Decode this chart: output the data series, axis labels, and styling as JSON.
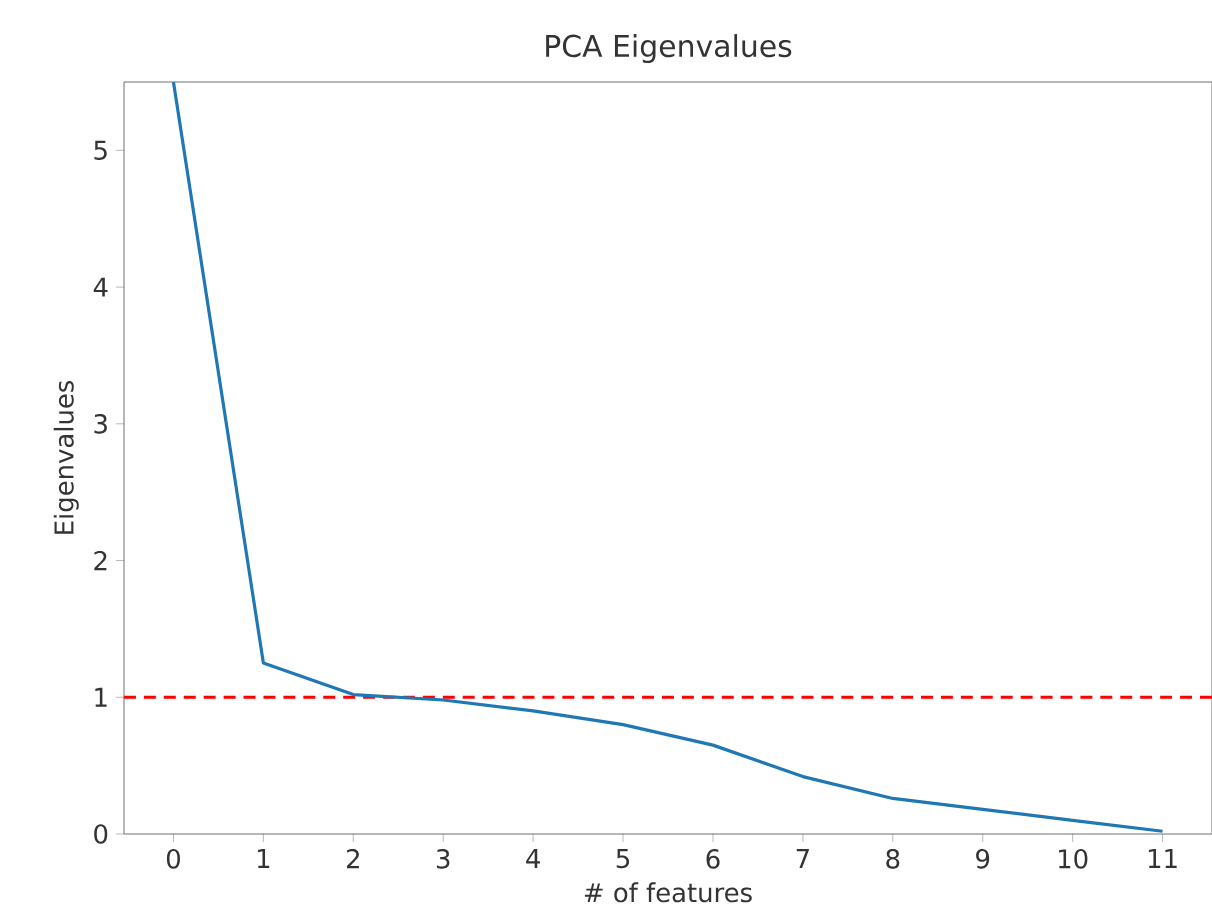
{
  "chart_data": {
    "type": "line",
    "title": "PCA Eigenvalues",
    "xlabel": "# of features",
    "ylabel": "Eigenvalues",
    "x": [
      0,
      1,
      2,
      3,
      4,
      5,
      6,
      7,
      8,
      9,
      10,
      11
    ],
    "series": [
      {
        "color": "#1f77b4",
        "values": [
          5.5,
          1.25,
          1.02,
          0.98,
          0.9,
          0.8,
          0.65,
          0.42,
          0.26,
          0.18,
          0.1,
          0.02
        ]
      }
    ],
    "xlim": [
      -0.55,
      11.55
    ],
    "ylim": [
      0,
      5.5
    ],
    "xticks": [
      0,
      1,
      2,
      3,
      4,
      5,
      6,
      7,
      8,
      9,
      10,
      11
    ],
    "yticks": [
      0,
      1,
      2,
      3,
      4,
      5
    ],
    "ref_lines": [
      {
        "axis": "y",
        "value": 1,
        "color": "#ff0000",
        "line_style": "dashed"
      }
    ],
    "marker": "none",
    "line_style": "solid"
  }
}
